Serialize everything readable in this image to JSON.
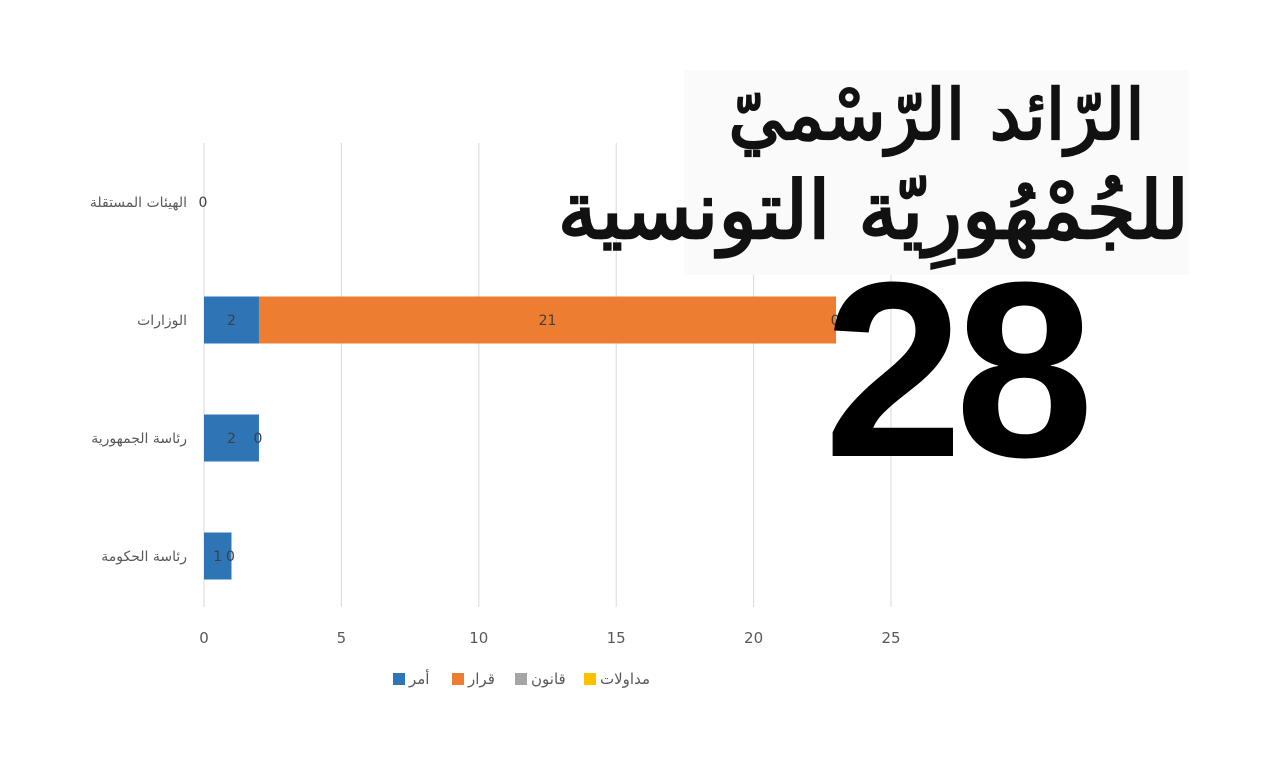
{
  "masthead": {
    "line1": "الرّائد الرّسْميّ",
    "line2": "للجُمْهُورِيّة التونسية",
    "issue_number": "28"
  },
  "chart_data": {
    "type": "bar",
    "orientation": "horizontal",
    "stacked": true,
    "categories": [
      "الهيئات المستقلة",
      "الوزارات",
      "رئاسة الجمهورية",
      "رئاسة الحكومة"
    ],
    "series": [
      {
        "name": "أمر",
        "color": "#2e75b6",
        "values": [
          0,
          2,
          2,
          1
        ]
      },
      {
        "name": "قرار",
        "color": "#ed7d31",
        "values": [
          0,
          21,
          0,
          0
        ]
      },
      {
        "name": "قانون",
        "color": "#a5a5a5",
        "values": [
          0,
          0,
          0,
          0
        ]
      },
      {
        "name": "مداولات",
        "color": "#ffc000",
        "values": [
          0,
          0,
          0,
          0
        ]
      }
    ],
    "data_labels": [
      [
        "0"
      ],
      [
        "2",
        "21",
        "0"
      ],
      [
        "2",
        "0"
      ],
      [
        "1",
        "0"
      ]
    ],
    "x_ticks": [
      "0",
      "5",
      "10",
      "15",
      "20",
      "25"
    ],
    "xlim": [
      0,
      25
    ],
    "grid": true,
    "legend_position": "bottom"
  }
}
